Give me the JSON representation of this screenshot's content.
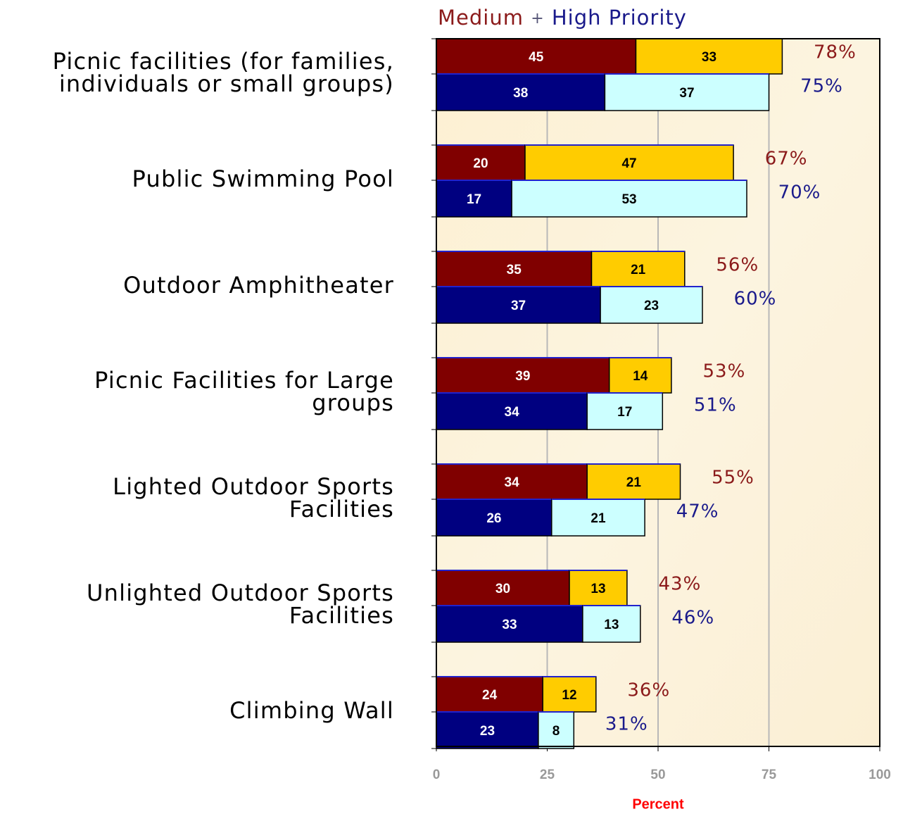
{
  "chart_data": {
    "type": "bar",
    "orientation": "horizontal",
    "stacked": true,
    "title": [
      "Medium",
      "+",
      "High Priority"
    ],
    "title_colors": [
      "#8b1a1a",
      "#555577",
      "#1a1a8b"
    ],
    "xlabel": "Percent",
    "xlabel_color": "#ff0000",
    "categories": [
      [
        "Picnic facilities (for families,",
        "individuals or small groups)"
      ],
      [
        "Public Swimming Pool"
      ],
      [
        "Outdoor Amphitheater"
      ],
      [
        "Picnic Facilities for Large",
        "groups"
      ],
      [
        "Lighted Outdoor Sports",
        "Facilities"
      ],
      [
        "Unlighted Outdoor Sports",
        "Facilities"
      ],
      [
        "Climbing Wall"
      ]
    ],
    "series": [
      {
        "stack": 0,
        "color": "#800000",
        "label_color": "#ffffff",
        "values": [
          45,
          20,
          35,
          39,
          34,
          30,
          24
        ]
      },
      {
        "stack": 0,
        "color": "#ffcc00",
        "label_color": "#000000",
        "values": [
          33,
          47,
          21,
          14,
          21,
          13,
          12
        ]
      },
      {
        "stack": 1,
        "color": "#000080",
        "label_color": "#ffffff",
        "values": [
          38,
          17,
          37,
          34,
          26,
          33,
          23
        ]
      },
      {
        "stack": 1,
        "color": "#ccffff",
        "label_color": "#000000",
        "values": [
          37,
          53,
          23,
          17,
          21,
          13,
          8
        ]
      }
    ],
    "totals": [
      {
        "stack": 0,
        "color": "#8b1a1a",
        "values": [
          78,
          67,
          56,
          53,
          55,
          43,
          36
        ],
        "value_labels": [
          "78%",
          "67%",
          "56%",
          "53%",
          "55%",
          "43%",
          "36%"
        ]
      },
      {
        "stack": 1,
        "color": "#1a1a8b",
        "values": [
          75,
          70,
          60,
          51,
          47,
          46,
          31
        ],
        "value_labels": [
          "75%",
          "70%",
          "60%",
          "51%",
          "47%",
          "46%",
          "31%"
        ]
      }
    ],
    "xlim": [
      0,
      100
    ],
    "xticks": [
      0,
      25,
      50,
      75,
      100
    ],
    "grid": true
  }
}
